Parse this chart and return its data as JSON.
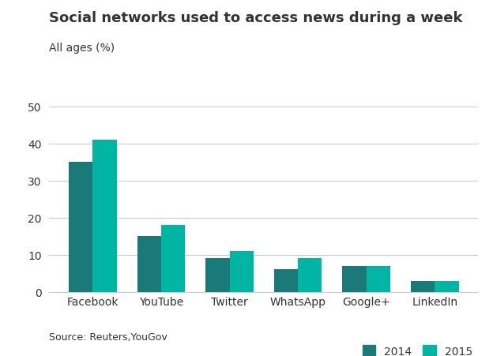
{
  "title": "Social networks used to access news during a week",
  "subtitle": "All ages (%)",
  "source": "Source: Reuters,YouGov",
  "categories": [
    "Facebook",
    "YouTube",
    "Twitter",
    "WhatsApp",
    "Google+",
    "LinkedIn"
  ],
  "values_2014": [
    35,
    15,
    9,
    6,
    7,
    3
  ],
  "values_2015": [
    41,
    18,
    11,
    9,
    7,
    3
  ],
  "color_2014": "#1a7a7a",
  "color_2015": "#00b5a3",
  "ylim": [
    0,
    50
  ],
  "yticks": [
    0,
    10,
    20,
    30,
    40,
    50
  ],
  "legend_labels": [
    "2014",
    "2015"
  ],
  "bar_width": 0.35,
  "title_fontsize": 13,
  "subtitle_fontsize": 10,
  "tick_fontsize": 10,
  "source_fontsize": 9,
  "background_color": "#ffffff",
  "text_color": "#333333"
}
